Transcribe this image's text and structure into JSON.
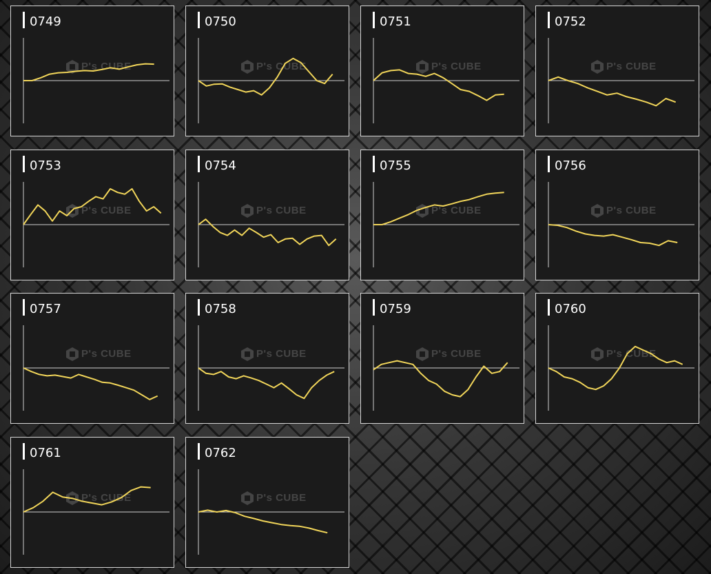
{
  "colors": {
    "line": "#f2d65a",
    "axis": "#d0d0d0",
    "panel_bg": "#1b1b1b",
    "panel_border": "#d6d6d6",
    "title": "#ffffff"
  },
  "watermark": {
    "brand": "P's CUBE"
  },
  "chart_data": [
    {
      "type": "line",
      "title": "0749",
      "ylim": [
        -100,
        100
      ],
      "values": [
        0,
        0,
        8,
        18,
        22,
        23,
        26,
        28,
        27,
        31,
        36,
        32,
        38,
        44,
        47,
        46
      ]
    },
    {
      "type": "line",
      "title": "0750",
      "ylim": [
        -100,
        100
      ],
      "values": [
        0,
        -15,
        -10,
        -9,
        -18,
        -25,
        -32,
        -28,
        -40,
        -20,
        10,
        48,
        62,
        50,
        25,
        0,
        -8,
        18
      ]
    },
    {
      "type": "line",
      "title": "0751",
      "ylim": [
        -100,
        100
      ],
      "values": [
        0,
        22,
        28,
        30,
        20,
        18,
        12,
        20,
        8,
        -8,
        -25,
        -30,
        -42,
        -55,
        -40,
        -38
      ]
    },
    {
      "type": "line",
      "title": "0752",
      "ylim": [
        -100,
        100
      ],
      "values": [
        0,
        10,
        0,
        -8,
        -20,
        -30,
        -40,
        -35,
        -45,
        -52,
        -60,
        -70,
        -50,
        -60
      ]
    },
    {
      "type": "line",
      "title": "0753",
      "ylim": [
        -100,
        100
      ],
      "values": [
        0,
        28,
        55,
        38,
        10,
        38,
        25,
        45,
        50,
        65,
        78,
        72,
        100,
        90,
        85,
        100,
        65,
        38,
        50,
        32
      ]
    },
    {
      "type": "line",
      "title": "0754",
      "ylim": [
        -100,
        100
      ],
      "values": [
        0,
        15,
        -5,
        -22,
        -30,
        -15,
        -30,
        -10,
        -22,
        -35,
        -28,
        -50,
        -40,
        -38,
        -55,
        -40,
        -32,
        -30,
        -58,
        -40
      ]
    },
    {
      "type": "line",
      "title": "0755",
      "ylim": [
        -100,
        100
      ],
      "values": [
        0,
        0,
        8,
        18,
        28,
        40,
        48,
        55,
        52,
        58,
        65,
        70,
        78,
        85,
        88,
        90
      ]
    },
    {
      "type": "line",
      "title": "0756",
      "ylim": [
        -100,
        100
      ],
      "values": [
        0,
        -2,
        -8,
        -18,
        -26,
        -30,
        -32,
        -28,
        -35,
        -42,
        -50,
        -52,
        -58,
        -45,
        -50
      ]
    },
    {
      "type": "line",
      "title": "0757",
      "ylim": [
        -100,
        100
      ],
      "values": [
        0,
        -10,
        -18,
        -22,
        -20,
        -24,
        -28,
        -18,
        -25,
        -32,
        -40,
        -42,
        -48,
        -55,
        -62,
        -75,
        -88,
        -78
      ]
    },
    {
      "type": "line",
      "title": "0758",
      "ylim": [
        -100,
        100
      ],
      "values": [
        0,
        -15,
        -18,
        -10,
        -25,
        -30,
        -22,
        -28,
        -35,
        -45,
        -55,
        -42,
        -58,
        -75,
        -85,
        -55,
        -35,
        -20,
        -10
      ]
    },
    {
      "type": "line",
      "title": "0759",
      "ylim": [
        -100,
        100
      ],
      "values": [
        -5,
        10,
        15,
        20,
        15,
        10,
        -15,
        -35,
        -45,
        -65,
        -75,
        -80,
        -60,
        -25,
        5,
        -15,
        -10,
        15
      ]
    },
    {
      "type": "line",
      "title": "0760",
      "ylim": [
        -100,
        100
      ],
      "values": [
        0,
        -10,
        -25,
        -30,
        -40,
        -55,
        -60,
        -50,
        -30,
        0,
        40,
        60,
        50,
        40,
        25,
        15,
        20,
        10
      ]
    },
    {
      "type": "line",
      "title": "0761",
      "ylim": [
        -100,
        100
      ],
      "values": [
        0,
        12,
        30,
        55,
        42,
        38,
        30,
        25,
        20,
        28,
        40,
        60,
        70,
        68
      ]
    },
    {
      "type": "line",
      "title": "0762",
      "ylim": [
        -100,
        100
      ],
      "values": [
        0,
        5,
        0,
        4,
        -2,
        -12,
        -18,
        -25,
        -30,
        -35,
        -38,
        -40,
        -45,
        -52,
        -58
      ]
    }
  ]
}
